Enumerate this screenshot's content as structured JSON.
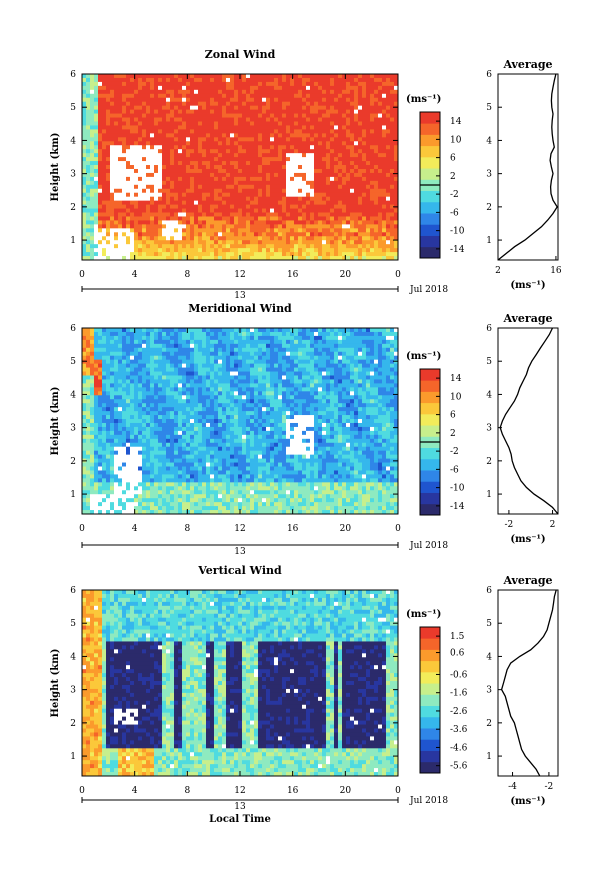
{
  "colors": {
    "no_data": "#ffffff",
    "colormap": [
      "#2b2a6b",
      "#2836a0",
      "#1f55cf",
      "#2f86e8",
      "#35b7ec",
      "#4fdbe0",
      "#8eeac0",
      "#c7ef8c",
      "#f2ec5a",
      "#fbc83a",
      "#fb9a2c",
      "#f5652a",
      "#ea3a2b"
    ],
    "line": "#000000"
  },
  "chart_data": [
    {
      "type": "heatmap",
      "title": "Zonal Wind",
      "xlabel": "",
      "ylabel": "Height (km)",
      "x_ticks": [
        "0",
        "4",
        "8",
        "12",
        "16",
        "20",
        "0"
      ],
      "x_range": [
        0,
        24
      ],
      "y_ticks": [
        "1",
        "2",
        "3",
        "4",
        "5",
        "6"
      ],
      "y_range": [
        0.4,
        6
      ],
      "date_tick": "13",
      "date_label": "Jul 2018",
      "colorbar": {
        "unit": "(ms⁻¹)",
        "ticks": [
          "14",
          "10",
          "6",
          "2",
          "-2",
          "-6",
          "-10",
          "-14"
        ],
        "range": [
          -16,
          16
        ],
        "zero_line": 0
      },
      "profile": {
        "title": "Average",
        "xlabel": "(ms⁻¹)",
        "x_ticks": [
          "2",
          "16"
        ],
        "x_range": [
          2,
          16.5
        ],
        "y_ticks": [
          "1",
          "2",
          "3",
          "4",
          "5",
          "6"
        ],
        "height": [
          0.4,
          0.6,
          0.8,
          1.0,
          1.2,
          1.4,
          1.6,
          1.8,
          2.0,
          2.2,
          2.4,
          2.6,
          2.8,
          3.0,
          3.2,
          3.4,
          3.6,
          3.8,
          4.0,
          4.2,
          4.4,
          4.6,
          4.8,
          5.0,
          5.2,
          5.4,
          5.6,
          5.8,
          6.0
        ],
        "value": [
          2.0,
          4.0,
          6.0,
          8.5,
          10.5,
          12.5,
          14.0,
          15.3,
          16.3,
          15.3,
          14.8,
          14.7,
          14.9,
          15.3,
          14.9,
          14.6,
          14.8,
          15.6,
          15.3,
          15.1,
          15.0,
          15.1,
          15.3,
          15.0,
          14.9,
          15.0,
          15.3,
          15.6,
          16.0
        ]
      }
    },
    {
      "type": "heatmap",
      "title": "Meridional Wind",
      "xlabel": "",
      "ylabel": "Height (km)",
      "x_ticks": [
        "0",
        "4",
        "8",
        "12",
        "16",
        "20",
        "0"
      ],
      "x_range": [
        0,
        24
      ],
      "y_ticks": [
        "1",
        "2",
        "3",
        "4",
        "5",
        "6"
      ],
      "y_range": [
        0.4,
        6
      ],
      "date_tick": "13",
      "date_label": "Jul 2018",
      "colorbar": {
        "unit": "(ms⁻¹)",
        "ticks": [
          "14",
          "10",
          "6",
          "2",
          "-2",
          "-6",
          "-10",
          "-14"
        ],
        "range": [
          -16,
          16
        ],
        "zero_line": 0
      },
      "profile": {
        "title": "Average",
        "xlabel": "(ms⁻¹)",
        "x_ticks": [
          "-2",
          "2"
        ],
        "x_range": [
          -3,
          2.5
        ],
        "y_ticks": [
          "1",
          "2",
          "3",
          "4",
          "5",
          "6"
        ],
        "height": [
          0.4,
          0.6,
          0.8,
          1.0,
          1.2,
          1.4,
          1.6,
          1.8,
          2.0,
          2.2,
          2.4,
          2.6,
          2.8,
          3.0,
          3.2,
          3.4,
          3.6,
          3.8,
          4.0,
          4.2,
          4.4,
          4.6,
          4.8,
          5.0,
          5.2,
          5.4,
          5.6,
          5.8,
          6.0
        ],
        "value": [
          2.5,
          2.0,
          1.2,
          0.3,
          -0.4,
          -0.9,
          -1.2,
          -1.5,
          -1.7,
          -1.8,
          -2.0,
          -2.3,
          -2.6,
          -2.8,
          -2.6,
          -2.3,
          -1.9,
          -1.5,
          -1.2,
          -1.0,
          -0.7,
          -0.4,
          -0.2,
          0.1,
          0.5,
          0.9,
          1.3,
          1.7,
          2.0
        ]
      }
    },
    {
      "type": "heatmap",
      "title": "Vertical Wind",
      "xlabel": "Local Time",
      "ylabel": "Height (km)",
      "x_ticks": [
        "0",
        "4",
        "8",
        "12",
        "16",
        "20",
        "0"
      ],
      "x_range": [
        0,
        24
      ],
      "y_ticks": [
        "1",
        "2",
        "3",
        "4",
        "5",
        "6"
      ],
      "y_range": [
        0.4,
        6
      ],
      "date_tick": "13",
      "date_label": "Jul 2018",
      "colorbar": {
        "unit": "(ms⁻¹)",
        "ticks": [
          "1.5",
          "0.6",
          "-0.6",
          "-1.6",
          "-2.6",
          "-3.6",
          "-4.6",
          "-5.6"
        ],
        "range": [
          -6,
          2
        ]
      },
      "profile": {
        "title": "Average",
        "xlabel": "(ms⁻¹)",
        "x_ticks": [
          "-4",
          "-2"
        ],
        "x_range": [
          -4.8,
          -1.5
        ],
        "y_ticks": [
          "1",
          "2",
          "3",
          "4",
          "5",
          "6"
        ],
        "height": [
          0.4,
          0.6,
          0.8,
          1.0,
          1.2,
          1.4,
          1.6,
          1.8,
          2.0,
          2.2,
          2.4,
          2.6,
          2.8,
          3.0,
          3.2,
          3.4,
          3.6,
          3.8,
          4.0,
          4.2,
          4.4,
          4.6,
          4.8,
          5.0,
          5.2,
          5.4,
          5.6,
          5.8,
          6.0
        ],
        "value": [
          -2.5,
          -2.7,
          -3.0,
          -3.3,
          -3.5,
          -3.6,
          -3.7,
          -3.8,
          -3.9,
          -4.1,
          -4.2,
          -4.3,
          -4.4,
          -4.6,
          -4.5,
          -4.4,
          -4.3,
          -4.1,
          -3.6,
          -3.0,
          -2.6,
          -2.3,
          -2.1,
          -2.0,
          -1.9,
          -1.8,
          -1.75,
          -1.7,
          -1.6
        ]
      }
    }
  ]
}
